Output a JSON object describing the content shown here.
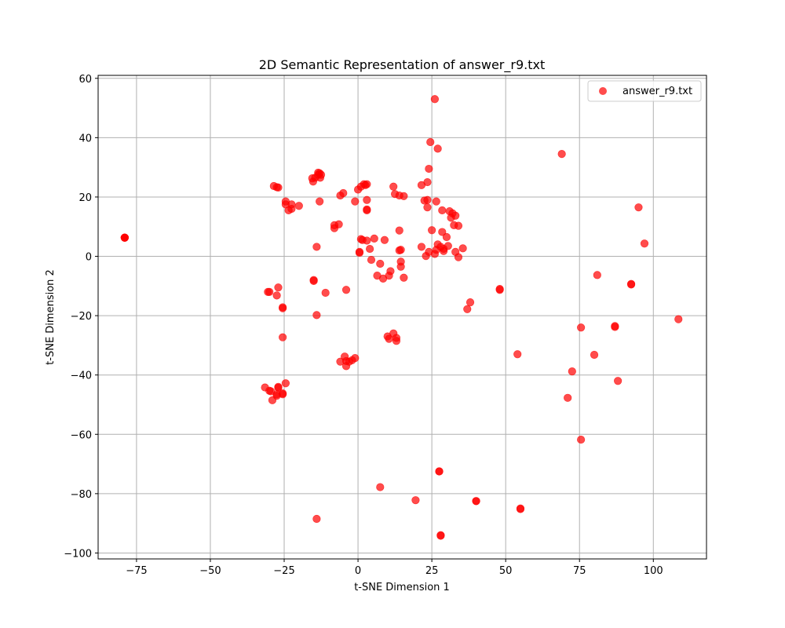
{
  "chart_data": {
    "type": "scatter",
    "title": "2D Semantic Representation of answer_r9.txt",
    "xlabel": "t-SNE Dimension 1",
    "ylabel": "t-SNE Dimension 2",
    "xlim": [
      -88,
      118
    ],
    "ylim": [
      -102,
      61
    ],
    "xticks": [
      -75,
      -50,
      -25,
      0,
      25,
      50,
      75,
      100
    ],
    "yticks": [
      -100,
      -80,
      -60,
      -40,
      -20,
      0,
      20,
      40,
      60
    ],
    "grid": true,
    "legend_position": "top-right",
    "series": [
      {
        "name": "answer_r9.txt",
        "color": "#ff0000",
        "opacity": 0.7,
        "points": [
          [
            -79,
            6.3
          ],
          [
            -79,
            6.3
          ],
          [
            -79,
            6.3
          ],
          [
            -79,
            6.3
          ],
          [
            -28.5,
            23.7
          ],
          [
            -27.5,
            23.3
          ],
          [
            -27,
            23.2
          ],
          [
            -24.5,
            18.5
          ],
          [
            -24.5,
            17.5
          ],
          [
            -23.5,
            15.5
          ],
          [
            -22.5,
            17.5
          ],
          [
            -22.5,
            16
          ],
          [
            -20,
            17
          ],
          [
            -15.5,
            26.3
          ],
          [
            -15.2,
            25.2
          ],
          [
            -14.5,
            26.5
          ],
          [
            -13.5,
            27.5
          ],
          [
            -13.5,
            28.2
          ],
          [
            -13,
            28
          ],
          [
            -12.8,
            26.5
          ],
          [
            -12.5,
            27.5
          ],
          [
            -13,
            18.5
          ],
          [
            -14,
            3.2
          ],
          [
            -8,
            10.5
          ],
          [
            -8,
            9.5
          ],
          [
            -6.5,
            10.8
          ],
          [
            -6,
            20.5
          ],
          [
            -5,
            21.3
          ],
          [
            -1,
            18.5
          ],
          [
            0,
            22.5
          ],
          [
            1,
            23.5
          ],
          [
            2,
            24.3
          ],
          [
            2.5,
            24
          ],
          [
            3,
            24.3
          ],
          [
            3,
            19
          ],
          [
            3,
            15.5
          ],
          [
            3,
            15.8
          ],
          [
            0.5,
            1.5
          ],
          [
            0.5,
            1.2
          ],
          [
            1,
            5.8
          ],
          [
            1.5,
            5.5
          ],
          [
            3,
            5.3
          ],
          [
            4,
            2.5
          ],
          [
            5.5,
            6
          ],
          [
            4.5,
            -1.2
          ],
          [
            6.5,
            -6.5
          ],
          [
            7.5,
            -2.5
          ],
          [
            8.5,
            -7.5
          ],
          [
            9,
            5.5
          ],
          [
            10.5,
            -6.5
          ],
          [
            11,
            -5
          ],
          [
            12,
            23.5
          ],
          [
            12.5,
            21
          ],
          [
            14,
            20.5
          ],
          [
            15.5,
            20.3
          ],
          [
            14,
            8.7
          ],
          [
            14,
            2
          ],
          [
            14.5,
            2.2
          ],
          [
            14.5,
            -1.8
          ],
          [
            14.5,
            -3.5
          ],
          [
            15.5,
            -7.2
          ],
          [
            21.5,
            24
          ],
          [
            22.5,
            18.8
          ],
          [
            23.5,
            19
          ],
          [
            23.5,
            16.5
          ],
          [
            23.5,
            25
          ],
          [
            24,
            29.5
          ],
          [
            24.5,
            38.5
          ],
          [
            26,
            53
          ],
          [
            27,
            36.3
          ],
          [
            26.5,
            18.5
          ],
          [
            21.5,
            3.2
          ],
          [
            23,
            0.1
          ],
          [
            24,
            1.5
          ],
          [
            25,
            8.8
          ],
          [
            26,
            0.8
          ],
          [
            26.5,
            2.2
          ],
          [
            27,
            4
          ],
          [
            28,
            3.2
          ],
          [
            28.5,
            8.2
          ],
          [
            29,
            2.5
          ],
          [
            29,
            1.8
          ],
          [
            30,
            6.5
          ],
          [
            30.5,
            3.5
          ],
          [
            31,
            15.2
          ],
          [
            31.5,
            13
          ],
          [
            32,
            14.5
          ],
          [
            32.5,
            10.5
          ],
          [
            33,
            13.7
          ],
          [
            33,
            1.5
          ],
          [
            34,
            -0.3
          ],
          [
            34,
            10.3
          ],
          [
            35.5,
            2.7
          ],
          [
            28.5,
            15.5
          ],
          [
            -30,
            -12
          ],
          [
            -30.5,
            -12
          ],
          [
            -27,
            -10.5
          ],
          [
            -27.5,
            -13.2
          ],
          [
            -25.5,
            -17.2
          ],
          [
            -25.5,
            -17.5
          ],
          [
            -25.5,
            -27.3
          ],
          [
            -15,
            -8
          ],
          [
            -15,
            -8.3
          ],
          [
            -11,
            -12.3
          ],
          [
            -14,
            -19.8
          ],
          [
            -4,
            -11.3
          ],
          [
            -31.5,
            -44.2
          ],
          [
            -30,
            -45.3
          ],
          [
            -29.5,
            -45.5
          ],
          [
            -29,
            -48.5
          ],
          [
            -27.5,
            -47
          ],
          [
            -27.5,
            -46.5
          ],
          [
            -27,
            -44
          ],
          [
            -27,
            -44.3
          ],
          [
            -25.5,
            -46.2
          ],
          [
            -25.5,
            -46.5
          ],
          [
            -24.5,
            -42.8
          ],
          [
            -4.5,
            -33.8
          ],
          [
            -4,
            -35.3
          ],
          [
            -4,
            -37
          ],
          [
            -3,
            -35.5
          ],
          [
            -2,
            -35
          ],
          [
            -1,
            -34.3
          ],
          [
            -6,
            -35.5
          ],
          [
            10,
            -27
          ],
          [
            10.5,
            -27.8
          ],
          [
            12,
            -26
          ],
          [
            13,
            -27.5
          ],
          [
            13,
            -28.5
          ],
          [
            37,
            -17.8
          ],
          [
            38,
            -15.5
          ],
          [
            48,
            -11.3
          ],
          [
            48,
            -11
          ],
          [
            7.5,
            -77.8
          ],
          [
            19.5,
            -82.2
          ],
          [
            27.5,
            -72.5
          ],
          [
            27.5,
            -72.5
          ],
          [
            28,
            -94
          ],
          [
            28,
            -94.2
          ],
          [
            40,
            -82.5
          ],
          [
            40,
            -82.5
          ],
          [
            55,
            -85
          ],
          [
            55,
            -85.2
          ],
          [
            -14,
            -88.5
          ],
          [
            69,
            34.5
          ],
          [
            95,
            16.5
          ],
          [
            97,
            4.3
          ],
          [
            81,
            -6.3
          ],
          [
            92.5,
            -9.3
          ],
          [
            92.5,
            -9.5
          ],
          [
            75.5,
            -24
          ],
          [
            87,
            -23.8
          ],
          [
            87,
            -23.5
          ],
          [
            108.5,
            -21.2
          ],
          [
            54,
            -33
          ],
          [
            72.5,
            -38.8
          ],
          [
            80,
            -33.2
          ],
          [
            88,
            -42
          ],
          [
            71,
            -47.7
          ],
          [
            75.5,
            -61.8
          ]
        ]
      }
    ]
  }
}
